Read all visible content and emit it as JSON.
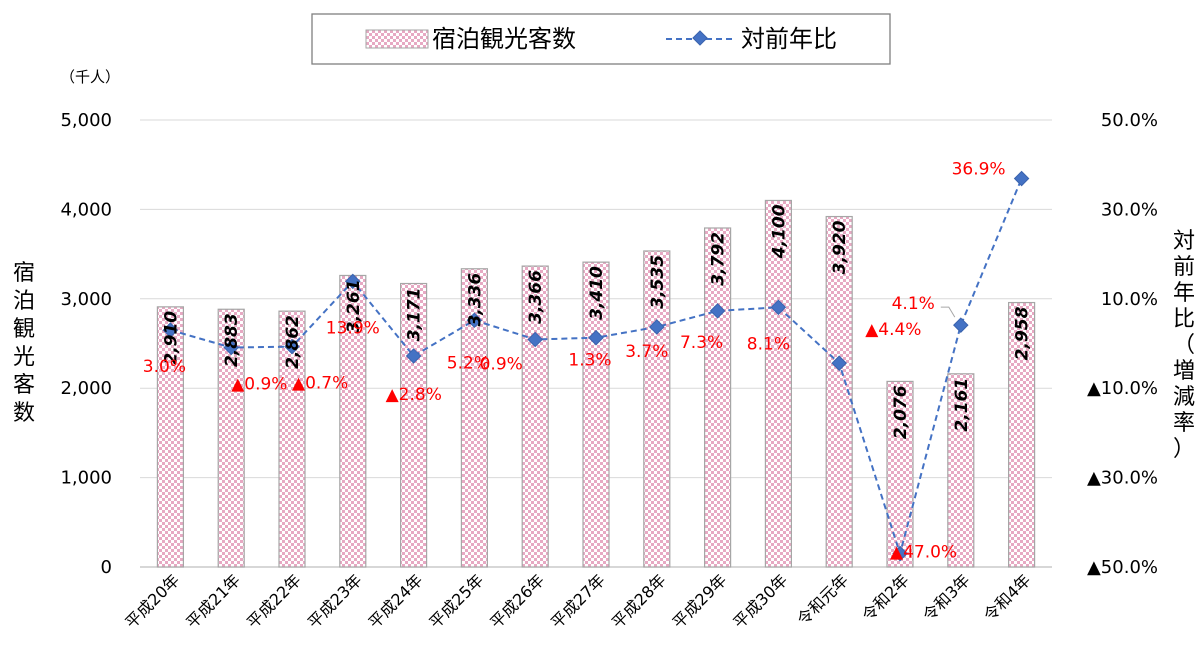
{
  "legend": {
    "bar_label": "宿泊観光客数",
    "line_label": "対前年比"
  },
  "axes": {
    "left_unit": "（千人）",
    "left_title": "宿泊観光客数",
    "right_title": "対前年比（増減率）"
  },
  "colors": {
    "bar_pattern_a": "#e7a9c3",
    "bar_pattern_b": "#ffffff",
    "line": "#4472c4",
    "negative_label": "#ff0000"
  },
  "chart_data": {
    "type": "bar",
    "categories": [
      "平成20年",
      "平成21年",
      "平成22年",
      "平成23年",
      "平成24年",
      "平成25年",
      "平成26年",
      "平成27年",
      "平成28年",
      "平成29年",
      "平成30年",
      "令和元年",
      "令和2年",
      "令和3年",
      "令和4年"
    ],
    "series": [
      {
        "name": "宿泊観光客数",
        "type": "bar",
        "axis": "left",
        "values": [
          2910,
          2883,
          2862,
          3261,
          3171,
          3336,
          3366,
          3410,
          3535,
          3792,
          4100,
          3920,
          2076,
          2161,
          2958
        ],
        "labels": [
          "2,910",
          "2,883",
          "2,862",
          "3,261",
          "3,171",
          "3,336",
          "3,366",
          "3,410",
          "3,535",
          "3,792",
          "4,100",
          "3,920",
          "2,076",
          "2,161",
          "2,958"
        ]
      },
      {
        "name": "対前年比",
        "type": "line",
        "axis": "right",
        "values": [
          3.0,
          -0.9,
          -0.7,
          13.9,
          -2.8,
          5.2,
          0.9,
          1.3,
          3.7,
          7.3,
          8.1,
          -4.4,
          -47.0,
          4.1,
          36.9
        ],
        "labels": [
          "3.0%",
          "▲0.9%",
          "▲0.7%",
          "13.9%",
          "▲2.8%",
          "5.2%",
          "0.9%",
          "1.3%",
          "3.7%",
          "7.3%",
          "8.1%",
          "▲4.4%",
          "▲47.0%",
          "4.1%",
          "36.9%"
        ]
      }
    ],
    "left_axis": {
      "ylim": [
        0,
        5000
      ],
      "ticks": [
        0,
        1000,
        2000,
        3000,
        4000,
        5000
      ],
      "tick_labels": [
        "0",
        "1,000",
        "2,000",
        "3,000",
        "4,000",
        "5,000"
      ]
    },
    "right_axis": {
      "ylim": [
        -50,
        50
      ],
      "ticks": [
        -50,
        -30,
        -10,
        10,
        30,
        50
      ],
      "tick_labels": [
        "▲50.0%",
        "▲30.0%",
        "▲10.0%",
        "10.0%",
        "30.0%",
        "50.0%"
      ]
    },
    "grid": true,
    "legend_position": "top-center"
  }
}
